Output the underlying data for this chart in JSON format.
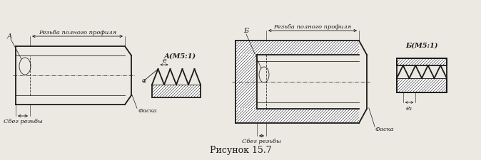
{
  "bg_color": "#ece9e2",
  "line_color": "#1a1a1a",
  "hatch_color": "#2a2a2a",
  "title": "Рисунок 15.7",
  "title_fontsize": 9,
  "label_A": "А",
  "label_B": "Б",
  "label_A_section": "А(М5:1)",
  "label_B_section": "Б(М5:1)",
  "label_thread_full": "Резьба полного профиля",
  "label_runout": "Сбег резьбы",
  "label_chamfer": "Фаска",
  "label_e": "e",
  "label_e1": "e₁",
  "label_alpha": "α"
}
